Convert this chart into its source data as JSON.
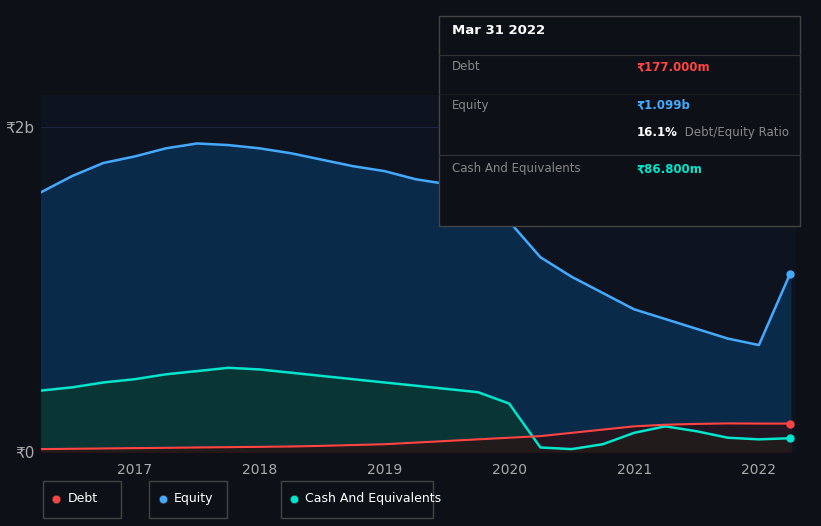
{
  "background_color": "#0d1117",
  "chart_bg_color": "#0d1420",
  "y2b_label": "₹2b",
  "y0_label": "₹0",
  "ytick_color": "#aaaaaa",
  "xtick_color": "#aaaaaa",
  "grid_color": "#223355",
  "legend_items": [
    "Debt",
    "Equity",
    "Cash And Equivalents"
  ],
  "legend_colors": [
    "#ff4444",
    "#44aaff",
    "#00e5cc"
  ],
  "tooltip": {
    "date": "Mar 31 2022",
    "debt_label": "Debt",
    "debt_value": "₹177.000m",
    "debt_color": "#ff4444",
    "equity_label": "Equity",
    "equity_value": "₹1.099b",
    "equity_color": "#44aaff",
    "ratio_value": "16.1%",
    "ratio_label": " Debt/Equity Ratio",
    "cash_label": "Cash And Equivalents",
    "cash_value": "₹86.800m",
    "cash_color": "#00e5cc"
  },
  "years": [
    2016.25,
    2016.5,
    2016.75,
    2017.0,
    2017.25,
    2017.5,
    2017.75,
    2018.0,
    2018.25,
    2018.5,
    2018.75,
    2019.0,
    2019.25,
    2019.5,
    2019.75,
    2020.0,
    2020.25,
    2020.5,
    2020.75,
    2021.0,
    2021.25,
    2021.5,
    2021.75,
    2022.0,
    2022.25
  ],
  "equity": [
    1600,
    1700,
    1780,
    1820,
    1870,
    1900,
    1890,
    1870,
    1840,
    1800,
    1760,
    1730,
    1680,
    1650,
    1600,
    1420,
    1200,
    1080,
    980,
    880,
    820,
    760,
    700,
    660,
    1099
  ],
  "cash": [
    380,
    400,
    430,
    450,
    480,
    500,
    520,
    510,
    490,
    470,
    450,
    430,
    410,
    390,
    370,
    300,
    30,
    20,
    50,
    120,
    160,
    130,
    90,
    80,
    87
  ],
  "debt": [
    20,
    22,
    24,
    26,
    28,
    30,
    32,
    34,
    36,
    40,
    45,
    50,
    60,
    70,
    80,
    90,
    100,
    120,
    140,
    160,
    170,
    175,
    178,
    177,
    177
  ],
  "equity_line_color": "#44aaff",
  "equity_fill_color": "#0a2a4a",
  "cash_line_color": "#00e5cc",
  "cash_fill_color": "#0a3535",
  "debt_line_color": "#ff4444",
  "debt_fill_color": "#330a0a",
  "ylim_max": 2200,
  "scale": 1000
}
